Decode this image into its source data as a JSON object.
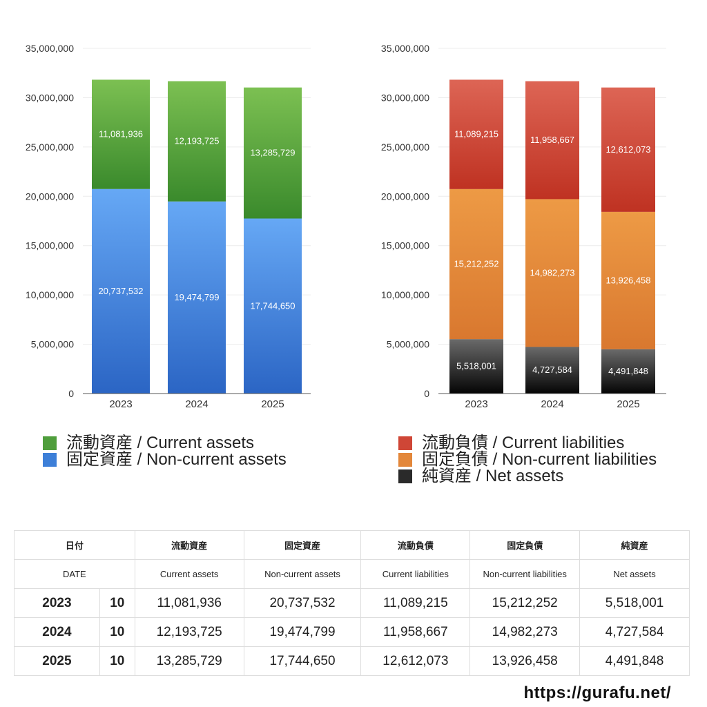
{
  "chart_data": [
    {
      "type": "bar",
      "stacked": true,
      "categories": [
        "2023",
        "2024",
        "2025"
      ],
      "ylim": [
        0,
        35000000
      ],
      "yticks": [
        "0",
        "5,000,000",
        "10,000,000",
        "15,000,000",
        "20,000,000",
        "25,000,000",
        "30,000,000",
        "35,000,000"
      ],
      "series": [
        {
          "name": "固定資産 / Non-current assets",
          "values": [
            20737532,
            19474799,
            17744650
          ],
          "labels": [
            "20,737,532",
            "19,474,799",
            "17,744,650"
          ],
          "color_top": "#66a8f5",
          "color_bottom": "#2b65c4"
        },
        {
          "name": "流動資産 / Current assets",
          "values": [
            11081936,
            12193725,
            13285729
          ],
          "labels": [
            "11,081,936",
            "12,193,725",
            "13,285,729"
          ],
          "color_top": "#7cc052",
          "color_bottom": "#3a8a2c"
        }
      ]
    },
    {
      "type": "bar",
      "stacked": true,
      "categories": [
        "2023",
        "2024",
        "2025"
      ],
      "ylim": [
        0,
        35000000
      ],
      "yticks": [
        "0",
        "5,000,000",
        "10,000,000",
        "15,000,000",
        "20,000,000",
        "25,000,000",
        "30,000,000",
        "35,000,000"
      ],
      "series": [
        {
          "name": "純資産 / Net assets",
          "values": [
            5518001,
            4727584,
            4491848
          ],
          "labels": [
            "5,518,001",
            "4,727,584",
            "4,491,848"
          ],
          "color_top": "#6a6a6a",
          "color_bottom": "#050505"
        },
        {
          "name": "固定負債 / Non-current liabilities",
          "values": [
            15212252,
            14982273,
            13926458
          ],
          "labels": [
            "15,212,252",
            "14,982,273",
            "13,926,458"
          ],
          "color_top": "#ed9a45",
          "color_bottom": "#d9782f"
        },
        {
          "name": "流動負債 / Current liabilities",
          "values": [
            11089215,
            11958667,
            12612073
          ],
          "labels": [
            "11,089,215",
            "11,958,667",
            "12,612,073"
          ],
          "color_top": "#dd6555",
          "color_bottom": "#bf3222"
        }
      ]
    }
  ],
  "legend_left": [
    {
      "label": "流動資産 / Current assets",
      "color": "#4f9e3c"
    },
    {
      "label": "固定資産 / Non-current assets",
      "color": "#3d7fd8"
    }
  ],
  "legend_right": [
    {
      "label": "流動負債 / Current liabilities",
      "color": "#cf4636"
    },
    {
      "label": "固定負債 / Non-current liabilities",
      "color": "#e3873a"
    },
    {
      "label": "純資産 / Net assets",
      "color": "#2a2a2a"
    }
  ],
  "table": {
    "header_jp": [
      "日付",
      "流動資産",
      "固定資産",
      "流動負債",
      "固定負債",
      "純資産"
    ],
    "header_en": [
      "DATE",
      "Current assets",
      "Non-current assets",
      "Current liabilities",
      "Non-current liabilities",
      "Net assets"
    ],
    "rows": [
      {
        "year": "2023",
        "month": "10",
        "cells": [
          "11,081,936",
          "20,737,532",
          "11,089,215",
          "15,212,252",
          "5,518,001"
        ]
      },
      {
        "year": "2024",
        "month": "10",
        "cells": [
          "12,193,725",
          "19,474,799",
          "11,958,667",
          "14,982,273",
          "4,727,584"
        ]
      },
      {
        "year": "2025",
        "month": "10",
        "cells": [
          "13,285,729",
          "17,744,650",
          "12,612,073",
          "13,926,458",
          "4,491,848"
        ]
      }
    ]
  },
  "site_url": "https://gurafu.net/"
}
